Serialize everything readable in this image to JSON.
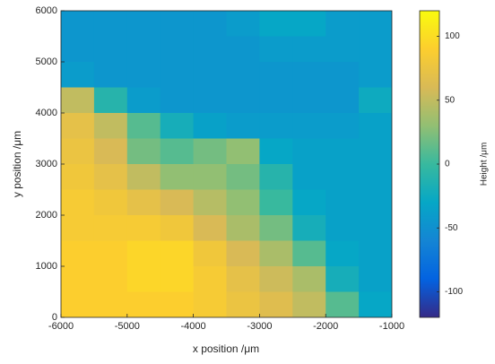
{
  "chart_data": {
    "type": "heatmap",
    "xlabel": "x position /μm",
    "ylabel": "y position /μm",
    "colorbar_label": "Height /μm",
    "colormap": "parula",
    "xlim": [
      -6000,
      -1000
    ],
    "ylim": [
      0,
      6000
    ],
    "xticks": [
      -6000,
      -5000,
      -4000,
      -3000,
      -2000,
      -1000
    ],
    "yticks": [
      0,
      1000,
      2000,
      3000,
      4000,
      5000,
      6000
    ],
    "clim": [
      -120,
      120
    ],
    "cticks": [
      -100,
      -50,
      0,
      50,
      100
    ],
    "x": [
      -5750,
      -5250,
      -4750,
      -4250,
      -3750,
      -3250,
      -2750,
      -2250,
      -1750,
      -1250
    ],
    "y": [
      5750,
      5250,
      4750,
      4250,
      3750,
      3250,
      2750,
      2250,
      1750,
      1250,
      750,
      250
    ],
    "values": [
      [
        -45,
        -45,
        -45,
        -45,
        -45,
        -40,
        -30,
        -30,
        -40,
        -40
      ],
      [
        -45,
        -45,
        -45,
        -45,
        -45,
        -45,
        -40,
        -40,
        -40,
        -40
      ],
      [
        -40,
        -45,
        -45,
        -45,
        -45,
        -45,
        -45,
        -45,
        -45,
        -40
      ],
      [
        50,
        -10,
        -40,
        -45,
        -45,
        -45,
        -45,
        -45,
        -45,
        -25
      ],
      [
        70,
        50,
        10,
        -20,
        -35,
        -40,
        -40,
        -40,
        -40,
        -35
      ],
      [
        75,
        60,
        20,
        10,
        20,
        30,
        -30,
        -35,
        -35,
        -35
      ],
      [
        80,
        70,
        50,
        30,
        30,
        20,
        -10,
        -35,
        -35,
        -35
      ],
      [
        85,
        80,
        70,
        60,
        45,
        30,
        0,
        -30,
        -35,
        -35
      ],
      [
        85,
        85,
        85,
        80,
        60,
        40,
        20,
        -20,
        -35,
        -35
      ],
      [
        90,
        90,
        95,
        95,
        80,
        60,
        40,
        10,
        -30,
        -35
      ],
      [
        90,
        90,
        95,
        95,
        85,
        70,
        55,
        40,
        -20,
        -35
      ],
      [
        90,
        90,
        90,
        90,
        85,
        75,
        65,
        50,
        10,
        -30
      ]
    ]
  }
}
